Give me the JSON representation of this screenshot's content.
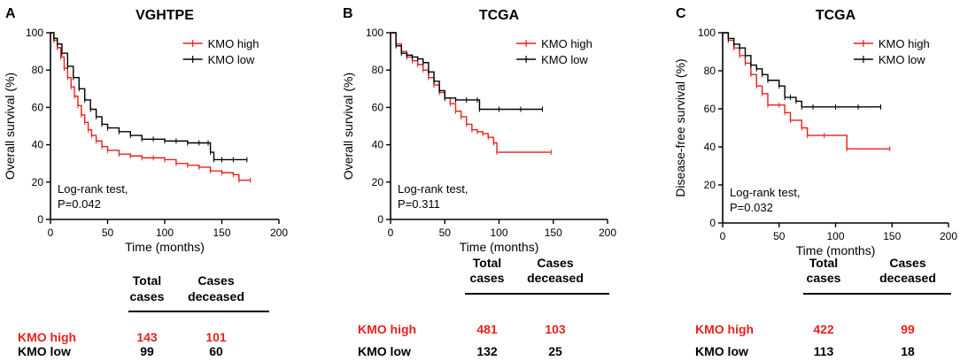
{
  "chart_data": [
    {
      "type": "line",
      "panel": "A",
      "title": "VGHTPE",
      "xlabel": "Time (months)",
      "ylabel": "Overall survival (%)",
      "xlim": [
        0,
        200
      ],
      "ylim": [
        0,
        100
      ],
      "xticks": [
        "0",
        "50",
        "100",
        "150",
        "200"
      ],
      "yticks": [
        "0",
        "20",
        "40",
        "60",
        "80",
        "100"
      ],
      "legend": "top-right",
      "annotation": [
        "Log-rank test,",
        "P=0.042"
      ],
      "series": [
        {
          "name": "KMO high",
          "color": "#e8211c",
          "points": [
            [
              0,
              100
            ],
            [
              3,
              96
            ],
            [
              6,
              92
            ],
            [
              9,
              87
            ],
            [
              12,
              81
            ],
            [
              15,
              76
            ],
            [
              18,
              71
            ],
            [
              21,
              66
            ],
            [
              24,
              61
            ],
            [
              27,
              56
            ],
            [
              30,
              52
            ],
            [
              33,
              48
            ],
            [
              36,
              45
            ],
            [
              40,
              42
            ],
            [
              45,
              39
            ],
            [
              50,
              37
            ],
            [
              60,
              35
            ],
            [
              70,
              34
            ],
            [
              80,
              33
            ],
            [
              90,
              33
            ],
            [
              100,
              32
            ],
            [
              110,
              30
            ],
            [
              120,
              29
            ],
            [
              130,
              28
            ],
            [
              140,
              26
            ],
            [
              150,
              25
            ],
            [
              160,
              24
            ],
            [
              165,
              21
            ],
            [
              175,
              21
            ]
          ]
        },
        {
          "name": "KMO low",
          "color": "#000000",
          "points": [
            [
              0,
              100
            ],
            [
              3,
              97
            ],
            [
              6,
              94
            ],
            [
              10,
              89
            ],
            [
              15,
              82
            ],
            [
              20,
              76
            ],
            [
              25,
              70
            ],
            [
              30,
              64
            ],
            [
              35,
              59
            ],
            [
              40,
              55
            ],
            [
              45,
              51
            ],
            [
              50,
              49
            ],
            [
              60,
              47
            ],
            [
              70,
              45
            ],
            [
              80,
              43
            ],
            [
              90,
              43
            ],
            [
              100,
              42
            ],
            [
              110,
              42
            ],
            [
              120,
              41
            ],
            [
              130,
              41
            ],
            [
              138,
              41
            ],
            [
              140,
              36
            ],
            [
              143,
              32
            ],
            [
              150,
              32
            ],
            [
              160,
              32
            ],
            [
              172,
              32
            ]
          ]
        }
      ],
      "table": {
        "headers": [
          [
            "Total",
            "cases"
          ],
          [
            "Cases",
            "deceased"
          ]
        ],
        "rows": [
          {
            "label": "KMO high",
            "total": "143",
            "deceased": "101",
            "color": "#e8211c"
          },
          {
            "label": "KMO low",
            "total": "99",
            "deceased": "60",
            "color": "#000000"
          }
        ]
      }
    },
    {
      "type": "line",
      "panel": "B",
      "title": "TCGA",
      "xlabel": "Time (months)",
      "ylabel": "Overall survival (%)",
      "xlim": [
        0,
        200
      ],
      "ylim": [
        0,
        100
      ],
      "xticks": [
        "0",
        "50",
        "100",
        "150",
        "200"
      ],
      "yticks": [
        "0",
        "20",
        "40",
        "60",
        "80",
        "100"
      ],
      "legend": "top-right",
      "annotation": [
        "Log-rank test,",
        "P=0.311"
      ],
      "series": [
        {
          "name": "KMO high",
          "color": "#e8211c",
          "points": [
            [
              0,
              100
            ],
            [
              5,
              94
            ],
            [
              10,
              90
            ],
            [
              15,
              87
            ],
            [
              20,
              85
            ],
            [
              25,
              83
            ],
            [
              30,
              80
            ],
            [
              35,
              76
            ],
            [
              40,
              72
            ],
            [
              45,
              68
            ],
            [
              50,
              65
            ],
            [
              55,
              62
            ],
            [
              60,
              58
            ],
            [
              65,
              55
            ],
            [
              70,
              51
            ],
            [
              75,
              48
            ],
            [
              80,
              47
            ],
            [
              85,
              46
            ],
            [
              90,
              44
            ],
            [
              95,
              41
            ],
            [
              98,
              36
            ],
            [
              148,
              36
            ]
          ]
        },
        {
          "name": "KMO low",
          "color": "#000000",
          "points": [
            [
              0,
              100
            ],
            [
              5,
              93
            ],
            [
              10,
              89
            ],
            [
              15,
              88
            ],
            [
              20,
              87
            ],
            [
              25,
              86
            ],
            [
              30,
              84
            ],
            [
              35,
              79
            ],
            [
              40,
              74
            ],
            [
              45,
              69
            ],
            [
              50,
              65
            ],
            [
              60,
              64
            ],
            [
              70,
              64
            ],
            [
              80,
              64
            ],
            [
              82,
              59
            ],
            [
              100,
              59
            ],
            [
              120,
              59
            ],
            [
              140,
              59
            ]
          ]
        }
      ],
      "table": {
        "headers": [
          [
            "Total",
            "cases"
          ],
          [
            "Cases",
            "deceased"
          ]
        ],
        "rows": [
          {
            "label": "KMO high",
            "total": "481",
            "deceased": "103",
            "color": "#e8211c"
          },
          {
            "label": "KMO low",
            "total": "132",
            "deceased": "25",
            "color": "#000000"
          }
        ]
      }
    },
    {
      "type": "line",
      "panel": "C",
      "title": "TCGA",
      "xlabel": "Time (months)",
      "ylabel": "Disease-free survival (%)",
      "xlim": [
        0,
        200
      ],
      "ylim": [
        0,
        100
      ],
      "xticks": [
        "0",
        "50",
        "100",
        "150",
        "200"
      ],
      "yticks": [
        "0",
        "20",
        "40",
        "60",
        "80",
        "100"
      ],
      "legend": "top-right",
      "annotation": [
        "Log-rank test,",
        "P=0.032"
      ],
      "series": [
        {
          "name": "KMO high",
          "color": "#e8211c",
          "points": [
            [
              0,
              100
            ],
            [
              5,
              96
            ],
            [
              10,
              92
            ],
            [
              15,
              88
            ],
            [
              20,
              84
            ],
            [
              25,
              78
            ],
            [
              30,
              72
            ],
            [
              35,
              68
            ],
            [
              40,
              62
            ],
            [
              50,
              62
            ],
            [
              55,
              58
            ],
            [
              60,
              54
            ],
            [
              70,
              50
            ],
            [
              75,
              46
            ],
            [
              90,
              46
            ],
            [
              110,
              39
            ],
            [
              148,
              39
            ]
          ]
        },
        {
          "name": "KMO low",
          "color": "#000000",
          "points": [
            [
              0,
              100
            ],
            [
              5,
              97
            ],
            [
              10,
              94
            ],
            [
              15,
              92
            ],
            [
              20,
              88
            ],
            [
              25,
              83
            ],
            [
              30,
              81
            ],
            [
              35,
              78
            ],
            [
              40,
              75
            ],
            [
              50,
              72
            ],
            [
              55,
              66
            ],
            [
              60,
              66
            ],
            [
              65,
              64
            ],
            [
              70,
              61
            ],
            [
              80,
              61
            ],
            [
              100,
              61
            ],
            [
              120,
              61
            ],
            [
              140,
              61
            ]
          ]
        }
      ],
      "table": {
        "headers": [
          [
            "Total",
            "cases"
          ],
          [
            "Cases",
            "deceased"
          ]
        ],
        "rows": [
          {
            "label": "KMO high",
            "total": "422",
            "deceased": "99",
            "color": "#e8211c"
          },
          {
            "label": "KMO low",
            "total": "113",
            "deceased": "18",
            "color": "#000000"
          }
        ]
      }
    }
  ]
}
